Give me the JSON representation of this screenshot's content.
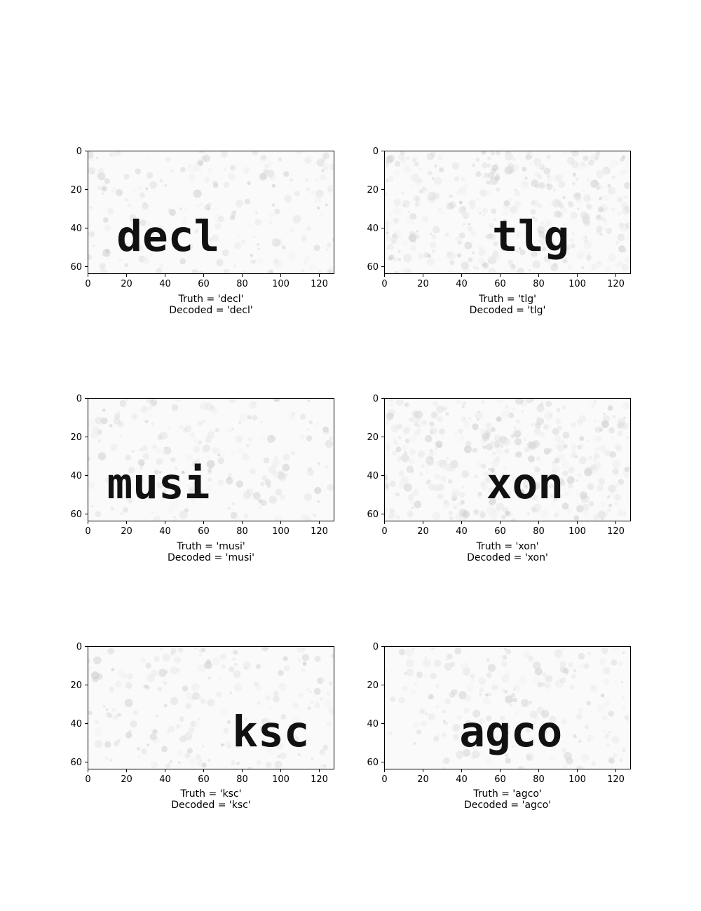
{
  "axis": {
    "x_ticks": [
      "0",
      "20",
      "40",
      "60",
      "80",
      "100",
      "120"
    ],
    "y_ticks": [
      "0",
      "20",
      "40",
      "60"
    ],
    "xlim": [
      0,
      128
    ],
    "ylim": [
      64,
      0
    ]
  },
  "captions": {
    "truth_prefix": "Truth = ",
    "decoded_prefix": "Decoded = "
  },
  "panels": [
    {
      "word": "decl",
      "text_x_start": 15,
      "text_baseline_y": 52,
      "truth": "Truth = 'decl'",
      "decoded": "Decoded = 'decl'"
    },
    {
      "word": "tlg",
      "text_x_start": 56,
      "text_baseline_y": 52,
      "truth": "Truth = 'tlg'",
      "decoded": "Decoded = 'tlg'"
    },
    {
      "word": "musi",
      "text_x_start": 10,
      "text_baseline_y": 52,
      "truth": "Truth = 'musi'",
      "decoded": "Decoded = 'musi'"
    },
    {
      "word": "xon",
      "text_x_start": 53,
      "text_baseline_y": 52,
      "truth": "Truth = 'xon'",
      "decoded": "Decoded = 'xon'"
    },
    {
      "word": "ksc",
      "text_x_start": 75,
      "text_baseline_y": 52,
      "truth": "Truth = 'ksc'",
      "decoded": "Decoded = 'ksc'"
    },
    {
      "word": "agco",
      "text_x_start": 39,
      "text_baseline_y": 52,
      "truth": "Truth = 'agco'",
      "decoded": "Decoded = 'agco'"
    }
  ]
}
